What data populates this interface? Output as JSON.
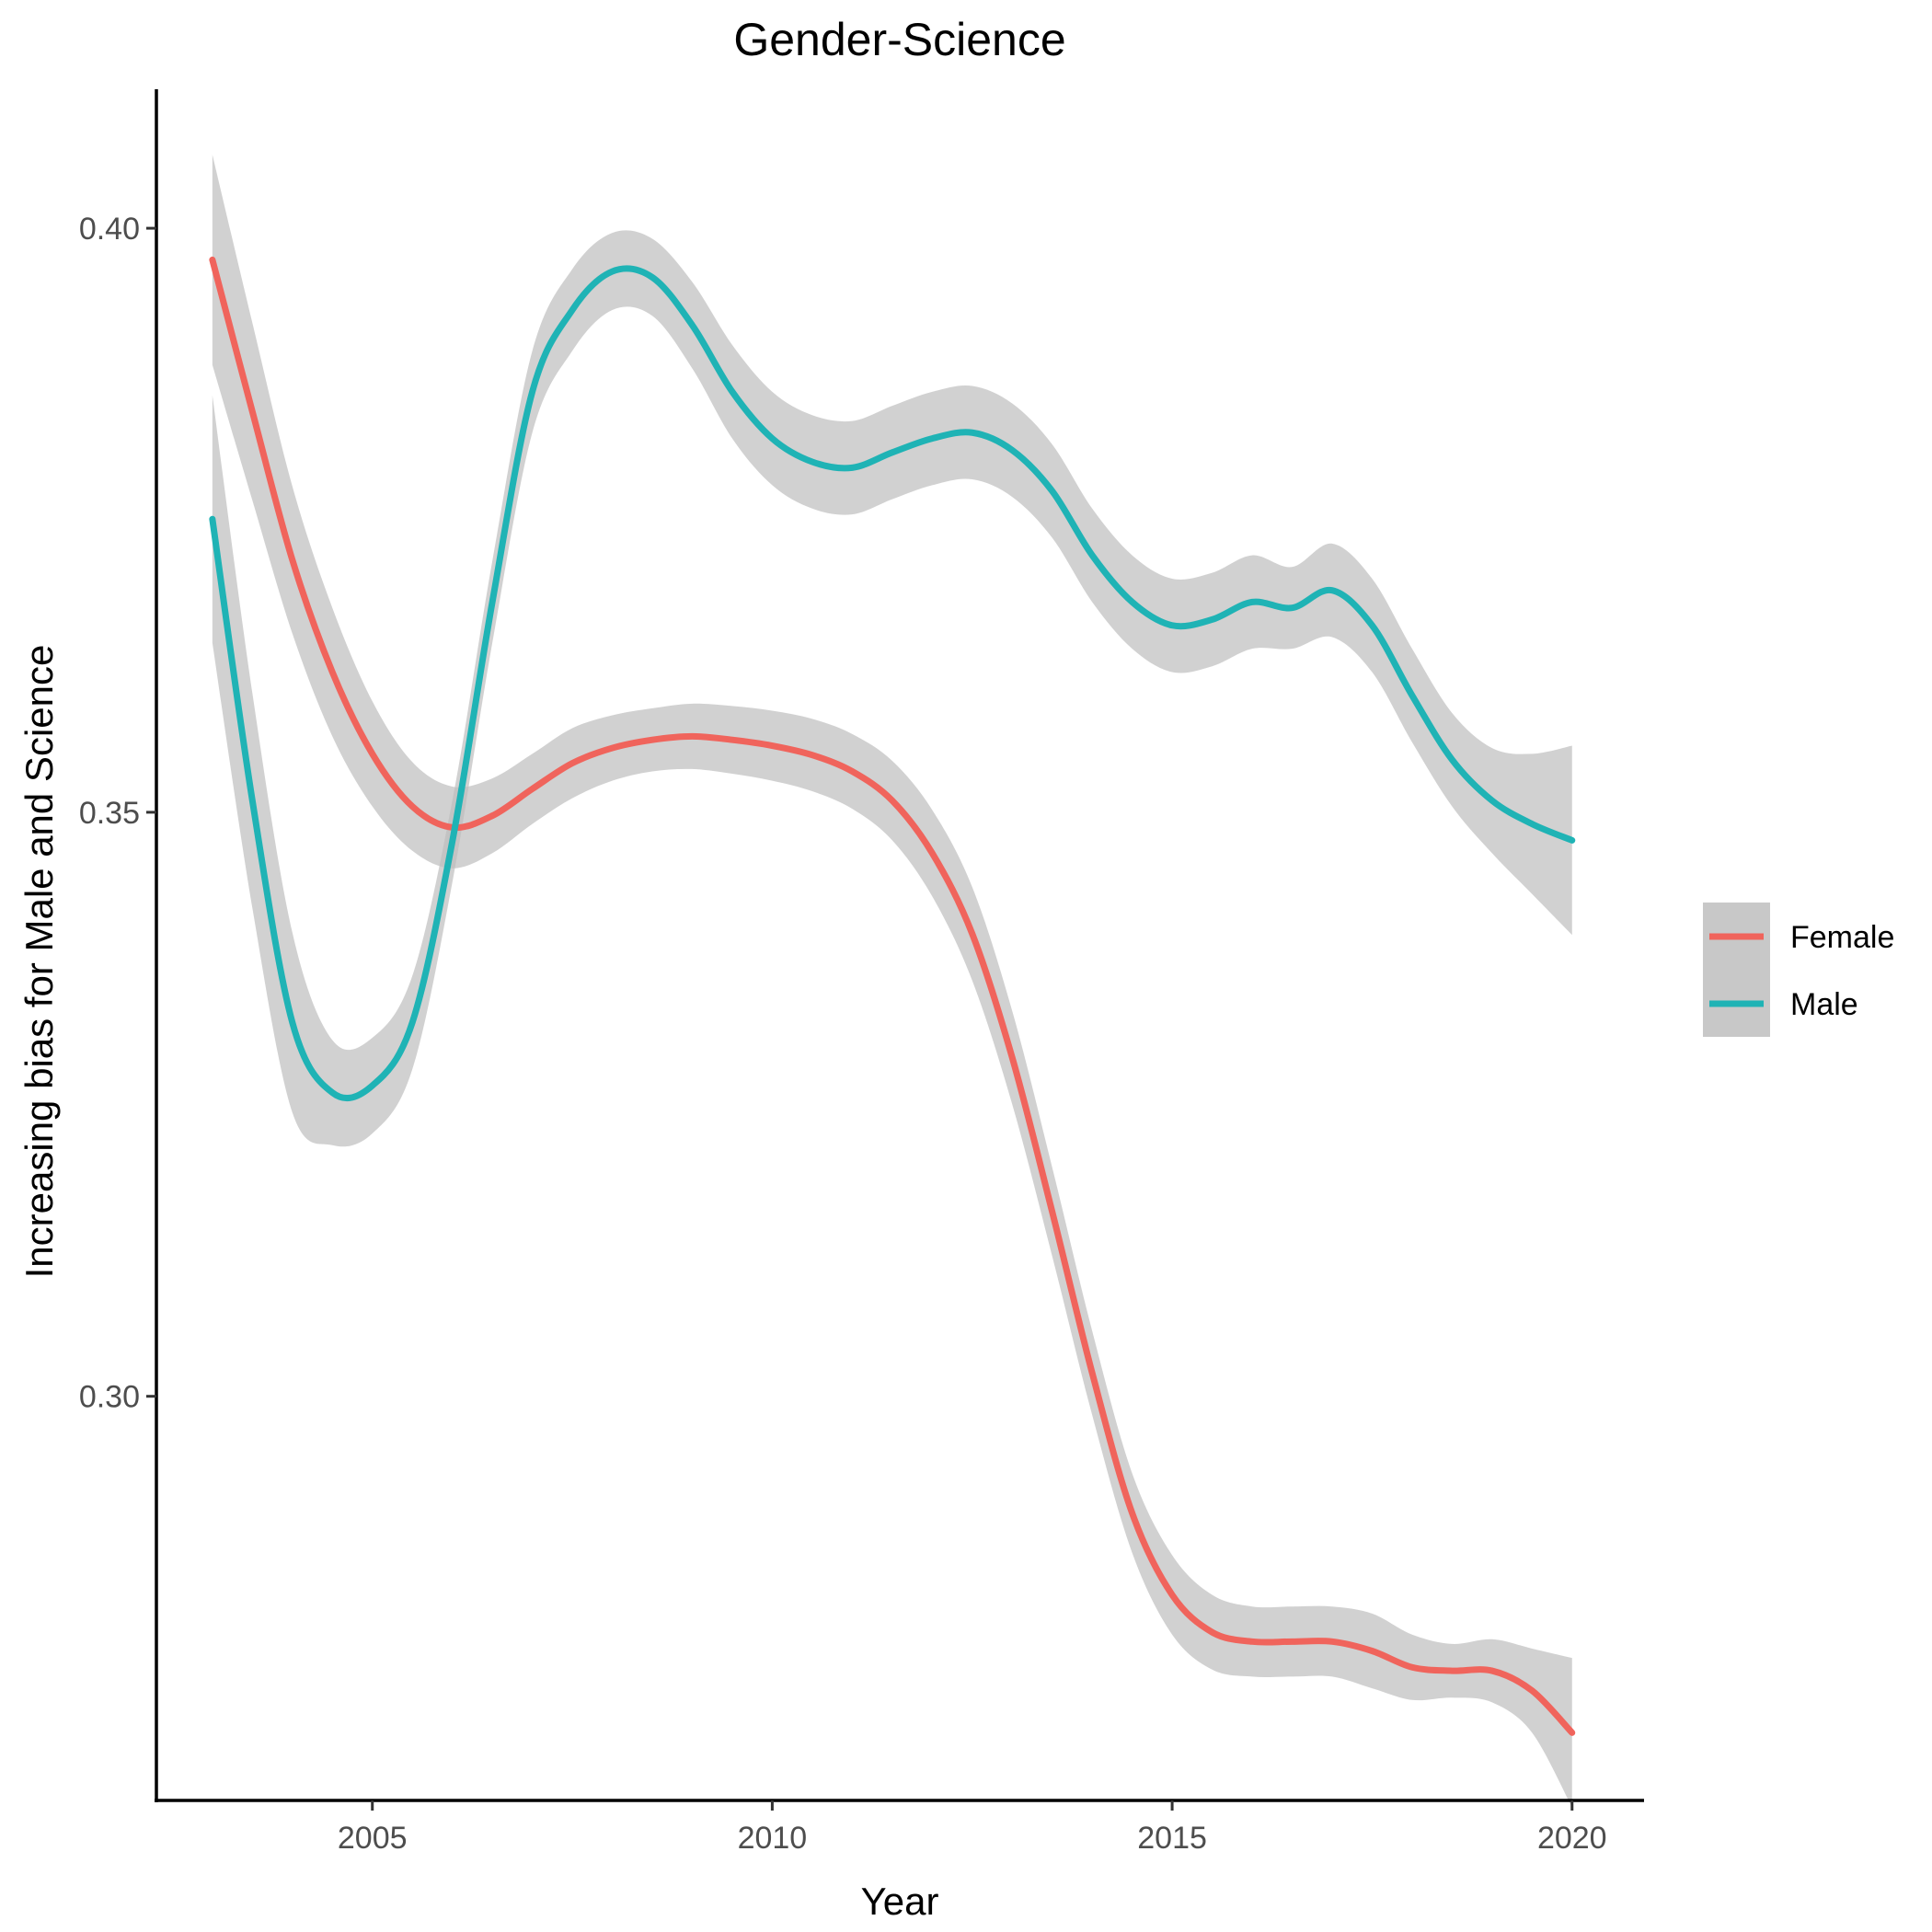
{
  "chart_data": {
    "type": "line",
    "title": "Gender-Science",
    "xlabel": "Year",
    "ylabel": "Increasing bias for Male and Science",
    "xlim": [
      2002.3,
      2020.9
    ],
    "ylim": [
      0.2654,
      0.4119
    ],
    "x_ticks": [
      2005,
      2010,
      2015,
      2020
    ],
    "y_ticks": [
      0.3,
      0.35,
      0.4
    ],
    "x_tick_labels": [
      "2005",
      "2010",
      "2015",
      "2020"
    ],
    "y_tick_labels": [
      "0.30",
      "0.35",
      "0.40"
    ],
    "grid": false,
    "legend_position": "right",
    "confidence_band_color": "#bebebe",
    "series": [
      {
        "name": "Female",
        "color": "#f0645c",
        "x": [
          2003,
          2003.5,
          2004,
          2004.5,
          2005,
          2005.5,
          2006,
          2006.5,
          2007,
          2007.5,
          2008,
          2008.5,
          2009,
          2009.5,
          2010,
          2010.5,
          2011,
          2011.5,
          2012,
          2012.5,
          2013,
          2013.5,
          2014,
          2014.5,
          2015,
          2015.5,
          2016,
          2016.5,
          2017,
          2017.5,
          2018,
          2018.5,
          2019,
          2019.5,
          2020
        ],
        "values": [
          0.3973,
          0.3843,
          0.3716,
          0.362,
          0.355,
          0.3505,
          0.3487,
          0.3497,
          0.352,
          0.3542,
          0.3555,
          0.3562,
          0.3565,
          0.3562,
          0.3557,
          0.3549,
          0.3535,
          0.351,
          0.3465,
          0.3396,
          0.329,
          0.3158,
          0.302,
          0.29,
          0.283,
          0.2798,
          0.279,
          0.279,
          0.279,
          0.2782,
          0.2768,
          0.2765,
          0.2765,
          0.2748,
          0.2712
        ],
        "ci_lower": [
          0.3883,
          0.3767,
          0.3653,
          0.3565,
          0.3505,
          0.3467,
          0.3452,
          0.3465,
          0.349,
          0.3512,
          0.3527,
          0.3535,
          0.3537,
          0.3533,
          0.3527,
          0.3518,
          0.3503,
          0.3476,
          0.3428,
          0.3356,
          0.325,
          0.312,
          0.2984,
          0.2866,
          0.2796,
          0.2766,
          0.276,
          0.276,
          0.276,
          0.275,
          0.274,
          0.2742,
          0.2738,
          0.2712,
          0.2648
        ],
        "ci_upper": [
          0.4063,
          0.3919,
          0.3779,
          0.3675,
          0.3595,
          0.3543,
          0.3522,
          0.3529,
          0.355,
          0.3572,
          0.3583,
          0.3589,
          0.3593,
          0.3591,
          0.3587,
          0.358,
          0.3567,
          0.3544,
          0.3502,
          0.3436,
          0.333,
          0.3196,
          0.3056,
          0.2934,
          0.2864,
          0.283,
          0.282,
          0.282,
          0.282,
          0.2814,
          0.2796,
          0.2788,
          0.2792,
          0.2784,
          0.2776
        ]
      },
      {
        "name": "Male",
        "color": "#1fb3b5",
        "x": [
          2003,
          2003.5,
          2004,
          2004.5,
          2005,
          2005.5,
          2006,
          2006.5,
          2007,
          2007.5,
          2008,
          2008.5,
          2009,
          2009.5,
          2010,
          2010.5,
          2011,
          2011.5,
          2012,
          2012.5,
          2013,
          2013.5,
          2014,
          2014.5,
          2015,
          2015.5,
          2016,
          2016.5,
          2017,
          2017.5,
          2018,
          2018.5,
          2019,
          2019.5,
          2020
        ],
        "values": [
          0.3751,
          0.351,
          0.332,
          0.326,
          0.3266,
          0.332,
          0.3475,
          0.368,
          0.386,
          0.393,
          0.3963,
          0.3958,
          0.3917,
          0.386,
          0.382,
          0.38,
          0.3795,
          0.3808,
          0.382,
          0.3825,
          0.381,
          0.3775,
          0.372,
          0.368,
          0.366,
          0.3665,
          0.368,
          0.3675,
          0.369,
          0.366,
          0.36,
          0.3545,
          0.351,
          0.349,
          0.3476
        ],
        "ci_lower": [
          0.3645,
          0.3418,
          0.3243,
          0.3215,
          0.3225,
          0.328,
          0.344,
          0.3645,
          0.3825,
          0.3895,
          0.393,
          0.3925,
          0.388,
          0.382,
          0.378,
          0.376,
          0.3755,
          0.3768,
          0.378,
          0.3785,
          0.377,
          0.3735,
          0.368,
          0.364,
          0.362,
          0.3625,
          0.364,
          0.364,
          0.365,
          0.362,
          0.356,
          0.3505,
          0.3465,
          0.343,
          0.3395
        ],
        "ci_upper": [
          0.3857,
          0.3602,
          0.3397,
          0.3305,
          0.3307,
          0.336,
          0.351,
          0.3715,
          0.3895,
          0.3965,
          0.3996,
          0.3991,
          0.3954,
          0.39,
          0.386,
          0.384,
          0.3835,
          0.3848,
          0.386,
          0.3865,
          0.385,
          0.3815,
          0.376,
          0.372,
          0.37,
          0.3705,
          0.372,
          0.371,
          0.373,
          0.37,
          0.364,
          0.3585,
          0.3555,
          0.355,
          0.3557
        ]
      }
    ]
  }
}
